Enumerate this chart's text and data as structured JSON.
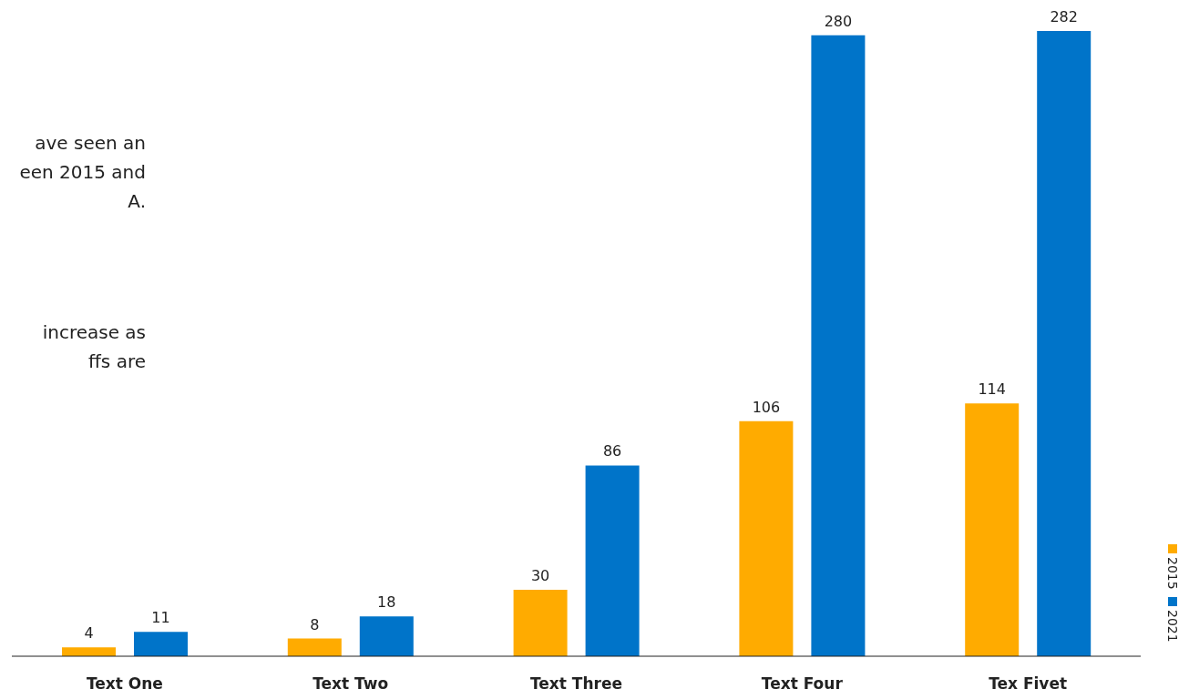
{
  "chart_data": {
    "type": "bar",
    "categories": [
      "Text One",
      "Text Two",
      "Text Three",
      "Text Four",
      "Tex Fivet"
    ],
    "series": [
      {
        "name": "2015",
        "color": "#ffab00",
        "values": [
          4,
          8,
          30,
          106,
          114
        ]
      },
      {
        "name": "2021",
        "color": "#0074c9",
        "values": [
          11,
          18,
          86,
          280,
          282
        ]
      }
    ],
    "data_labels": true,
    "legend": "right",
    "grid": false,
    "annotations": [
      "ave seen an",
      "een 2015 and",
      "A.",
      "increase as",
      "ffs are"
    ]
  }
}
